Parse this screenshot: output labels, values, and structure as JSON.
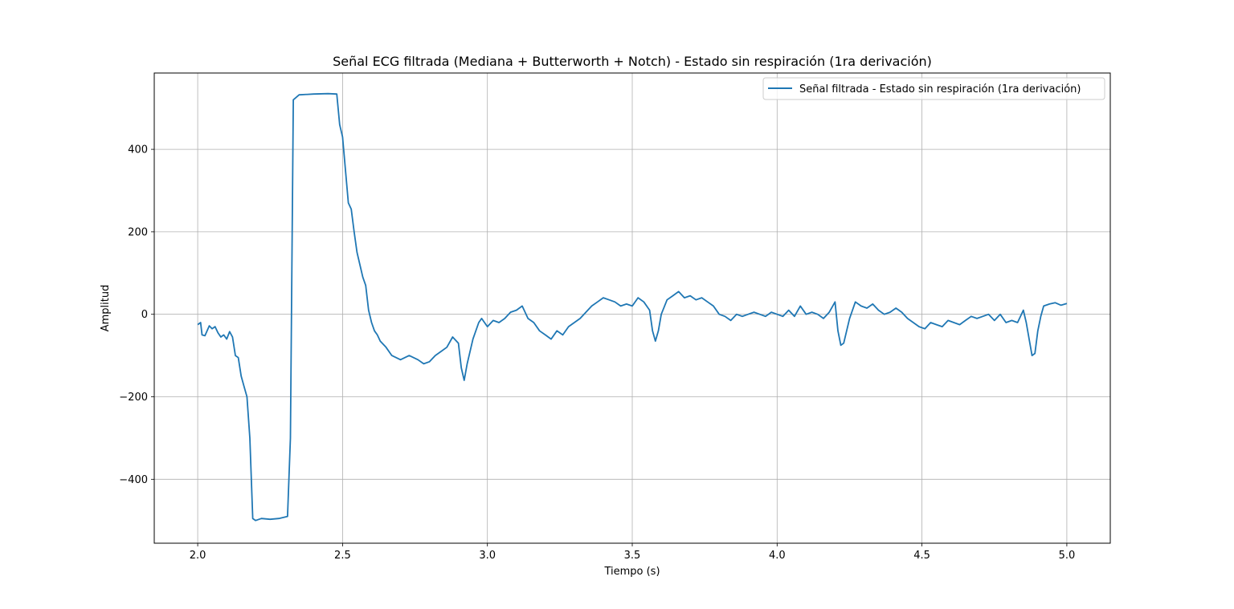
{
  "chart_data": {
    "type": "line",
    "title": "Señal ECG filtrada (Mediana + Butterworth + Notch) - Estado sin respiración (1ra derivación)",
    "xlabel": "Tiempo (s)",
    "ylabel": "Amplitud",
    "xlim": [
      1.85,
      5.15
    ],
    "ylim": [
      -555,
      585
    ],
    "xticks": [
      2.0,
      2.5,
      3.0,
      3.5,
      4.0,
      4.5,
      5.0
    ],
    "xtick_labels": [
      "2.0",
      "2.5",
      "3.0",
      "3.5",
      "4.0",
      "4.5",
      "5.0"
    ],
    "yticks": [
      -400,
      -200,
      0,
      200,
      400
    ],
    "ytick_labels": [
      "−400",
      "−200",
      "0",
      "200",
      "400"
    ],
    "grid": true,
    "legend_position": "top-right",
    "series": [
      {
        "name": "Señal filtrada - Estado sin respiración (1ra derivación)",
        "color": "#1f77b4",
        "points": [
          [
            2.0,
            -25
          ],
          [
            2.01,
            -20
          ],
          [
            2.015,
            -50
          ],
          [
            2.025,
            -52
          ],
          [
            2.04,
            -28
          ],
          [
            2.05,
            -35
          ],
          [
            2.06,
            -30
          ],
          [
            2.07,
            -45
          ],
          [
            2.08,
            -55
          ],
          [
            2.09,
            -50
          ],
          [
            2.1,
            -60
          ],
          [
            2.11,
            -42
          ],
          [
            2.12,
            -55
          ],
          [
            2.13,
            -100
          ],
          [
            2.14,
            -105
          ],
          [
            2.15,
            -150
          ],
          [
            2.16,
            -175
          ],
          [
            2.17,
            -200
          ],
          [
            2.18,
            -300
          ],
          [
            2.19,
            -495
          ],
          [
            2.2,
            -500
          ],
          [
            2.22,
            -495
          ],
          [
            2.25,
            -497
          ],
          [
            2.28,
            -495
          ],
          [
            2.31,
            -490
          ],
          [
            2.32,
            -300
          ],
          [
            2.33,
            520
          ],
          [
            2.35,
            532
          ],
          [
            2.4,
            534
          ],
          [
            2.45,
            535
          ],
          [
            2.48,
            534
          ],
          [
            2.49,
            460
          ],
          [
            2.5,
            430
          ],
          [
            2.52,
            270
          ],
          [
            2.53,
            255
          ],
          [
            2.54,
            200
          ],
          [
            2.55,
            150
          ],
          [
            2.56,
            120
          ],
          [
            2.57,
            90
          ],
          [
            2.58,
            70
          ],
          [
            2.59,
            10
          ],
          [
            2.6,
            -20
          ],
          [
            2.61,
            -40
          ],
          [
            2.62,
            -50
          ],
          [
            2.63,
            -65
          ],
          [
            2.65,
            -80
          ],
          [
            2.67,
            -100
          ],
          [
            2.7,
            -110
          ],
          [
            2.73,
            -100
          ],
          [
            2.76,
            -110
          ],
          [
            2.78,
            -120
          ],
          [
            2.8,
            -115
          ],
          [
            2.82,
            -100
          ],
          [
            2.84,
            -90
          ],
          [
            2.86,
            -80
          ],
          [
            2.88,
            -55
          ],
          [
            2.9,
            -70
          ],
          [
            2.91,
            -130
          ],
          [
            2.92,
            -160
          ],
          [
            2.93,
            -120
          ],
          [
            2.95,
            -60
          ],
          [
            2.97,
            -20
          ],
          [
            2.98,
            -10
          ],
          [
            3.0,
            -30
          ],
          [
            3.02,
            -15
          ],
          [
            3.04,
            -20
          ],
          [
            3.06,
            -10
          ],
          [
            3.08,
            5
          ],
          [
            3.1,
            10
          ],
          [
            3.12,
            20
          ],
          [
            3.14,
            -10
          ],
          [
            3.16,
            -20
          ],
          [
            3.18,
            -40
          ],
          [
            3.2,
            -50
          ],
          [
            3.22,
            -60
          ],
          [
            3.24,
            -40
          ],
          [
            3.26,
            -50
          ],
          [
            3.28,
            -30
          ],
          [
            3.3,
            -20
          ],
          [
            3.32,
            -10
          ],
          [
            3.34,
            5
          ],
          [
            3.36,
            20
          ],
          [
            3.38,
            30
          ],
          [
            3.4,
            40
          ],
          [
            3.42,
            35
          ],
          [
            3.44,
            30
          ],
          [
            3.46,
            20
          ],
          [
            3.48,
            25
          ],
          [
            3.5,
            20
          ],
          [
            3.52,
            40
          ],
          [
            3.54,
            30
          ],
          [
            3.56,
            10
          ],
          [
            3.57,
            -40
          ],
          [
            3.58,
            -65
          ],
          [
            3.59,
            -40
          ],
          [
            3.6,
            0
          ],
          [
            3.62,
            35
          ],
          [
            3.64,
            45
          ],
          [
            3.66,
            55
          ],
          [
            3.68,
            40
          ],
          [
            3.7,
            45
          ],
          [
            3.72,
            35
          ],
          [
            3.74,
            40
          ],
          [
            3.76,
            30
          ],
          [
            3.78,
            20
          ],
          [
            3.8,
            0
          ],
          [
            3.82,
            -5
          ],
          [
            3.84,
            -15
          ],
          [
            3.86,
            0
          ],
          [
            3.88,
            -5
          ],
          [
            3.9,
            0
          ],
          [
            3.92,
            5
          ],
          [
            3.94,
            0
          ],
          [
            3.96,
            -5
          ],
          [
            3.98,
            5
          ],
          [
            4.0,
            0
          ],
          [
            4.02,
            -5
          ],
          [
            4.04,
            10
          ],
          [
            4.06,
            -5
          ],
          [
            4.08,
            20
          ],
          [
            4.1,
            0
          ],
          [
            4.12,
            5
          ],
          [
            4.14,
            0
          ],
          [
            4.16,
            -10
          ],
          [
            4.18,
            5
          ],
          [
            4.2,
            30
          ],
          [
            4.21,
            -40
          ],
          [
            4.22,
            -75
          ],
          [
            4.23,
            -70
          ],
          [
            4.25,
            -10
          ],
          [
            4.27,
            30
          ],
          [
            4.29,
            20
          ],
          [
            4.31,
            15
          ],
          [
            4.33,
            25
          ],
          [
            4.35,
            10
          ],
          [
            4.37,
            0
          ],
          [
            4.39,
            5
          ],
          [
            4.41,
            15
          ],
          [
            4.43,
            5
          ],
          [
            4.45,
            -10
          ],
          [
            4.47,
            -20
          ],
          [
            4.49,
            -30
          ],
          [
            4.51,
            -35
          ],
          [
            4.53,
            -20
          ],
          [
            4.55,
            -25
          ],
          [
            4.57,
            -30
          ],
          [
            4.59,
            -15
          ],
          [
            4.61,
            -20
          ],
          [
            4.63,
            -25
          ],
          [
            4.65,
            -15
          ],
          [
            4.67,
            -5
          ],
          [
            4.69,
            -10
          ],
          [
            4.71,
            -5
          ],
          [
            4.73,
            0
          ],
          [
            4.75,
            -15
          ],
          [
            4.77,
            0
          ],
          [
            4.79,
            -20
          ],
          [
            4.81,
            -15
          ],
          [
            4.83,
            -20
          ],
          [
            4.85,
            10
          ],
          [
            4.86,
            -20
          ],
          [
            4.87,
            -60
          ],
          [
            4.88,
            -100
          ],
          [
            4.89,
            -95
          ],
          [
            4.9,
            -40
          ],
          [
            4.91,
            -5
          ],
          [
            4.92,
            20
          ],
          [
            4.94,
            25
          ],
          [
            4.96,
            28
          ],
          [
            4.98,
            22
          ],
          [
            5.0,
            26
          ]
        ]
      }
    ]
  }
}
